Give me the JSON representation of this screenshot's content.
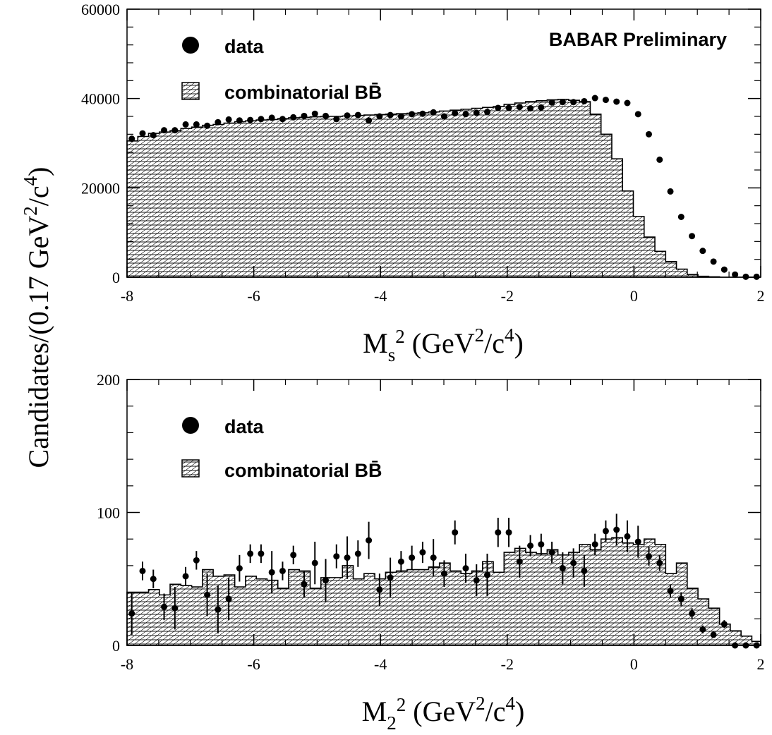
{
  "figure": {
    "header": "BABAR Preliminary",
    "ylabel": {
      "main": "Candidates/(0.17 GeV",
      "sup1": "2",
      "mid": "/c",
      "sup2": "4",
      "end": ")"
    }
  },
  "chart_data": [
    {
      "type": "bar",
      "title": "",
      "xlabel": {
        "base": "M",
        "sub": "s",
        "sup": "2",
        "rest": " (GeV",
        "sup2": "2",
        "mid": "/c",
        "sup3": "4",
        "end": ")"
      },
      "ylabel": "Candidates/(0.17 GeV2/c4)",
      "xlim": [
        -8,
        2
      ],
      "ylim": [
        0,
        60000
      ],
      "x_ticks": [
        -8,
        -6,
        -4,
        -2,
        0,
        2
      ],
      "y_ticks": [
        0,
        20000,
        40000,
        60000
      ],
      "x_tick_labels": [
        "-8",
        "-6",
        "-4",
        "-2",
        "0",
        "2"
      ],
      "y_tick_labels": [
        "0",
        "20000",
        "40000",
        "60000"
      ],
      "grid": false,
      "legend": {
        "position": "top-left",
        "entries": [
          {
            "label": "data",
            "marker": "filled-circle"
          },
          {
            "label": "combinatorial BB̄",
            "marker": "hatched-box"
          }
        ]
      },
      "bin_width": 0.17,
      "series": [
        {
          "name": "combinatorial BB̄",
          "kind": "hatched-histogram",
          "values": [
            30500,
            31500,
            32200,
            32500,
            32800,
            33300,
            33600,
            34000,
            34200,
            34500,
            34800,
            35000,
            35200,
            35300,
            35500,
            35700,
            35800,
            35900,
            36000,
            36000,
            36100,
            36200,
            36300,
            36400,
            36500,
            36600,
            36700,
            36800,
            37000,
            37200,
            37400,
            37600,
            37800,
            38000,
            38200,
            38700,
            39000,
            39300,
            39500,
            39700,
            39800,
            39600,
            39300,
            36500,
            32000,
            26500,
            19300,
            13600,
            9000,
            5800,
            3500,
            1800,
            600,
            200,
            100,
            0,
            0,
            0,
            0
          ]
        },
        {
          "name": "data",
          "kind": "points",
          "x": [
            -7.925,
            -7.755,
            -7.585,
            -7.415,
            -7.245,
            -7.075,
            -6.905,
            -6.735,
            -6.565,
            -6.395,
            -6.225,
            -6.055,
            -5.885,
            -5.715,
            -5.545,
            -5.375,
            -5.205,
            -5.035,
            -4.865,
            -4.695,
            -4.525,
            -4.355,
            -4.185,
            -4.015,
            -3.845,
            -3.675,
            -3.505,
            -3.335,
            -3.165,
            -2.995,
            -2.825,
            -2.655,
            -2.485,
            -2.315,
            -2.145,
            -1.975,
            -1.805,
            -1.635,
            -1.465,
            -1.295,
            -1.125,
            -0.955,
            -0.785,
            -0.615,
            -0.445,
            -0.275,
            -0.105,
            0.065,
            0.235,
            0.405,
            0.575,
            0.745,
            0.915,
            1.085,
            1.255,
            1.425,
            1.595,
            1.765,
            1.935
          ],
          "y": [
            31000,
            32200,
            31800,
            32900,
            32900,
            34200,
            34200,
            33900,
            34700,
            35300,
            35100,
            35200,
            35400,
            35700,
            35400,
            35800,
            36100,
            36600,
            36100,
            35400,
            36200,
            36300,
            35100,
            36000,
            36300,
            36000,
            36500,
            36600,
            36900,
            36000,
            36700,
            36500,
            36800,
            37000,
            37900,
            37900,
            38100,
            37800,
            38000,
            39100,
            39200,
            39200,
            39400,
            40100,
            39700,
            39300,
            39000,
            36500,
            32000,
            26300,
            19200,
            13500,
            9200,
            5900,
            3500,
            1700,
            600,
            100,
            100
          ],
          "yerr": []
        }
      ]
    },
    {
      "type": "bar",
      "title": "",
      "xlabel": {
        "base": "M",
        "sub": "2",
        "sup": "2",
        "rest": " (GeV",
        "sup2": "2",
        "mid": "/c",
        "sup3": "4",
        "end": ")"
      },
      "ylabel": "Candidates/(0.17 GeV2/c4)",
      "xlim": [
        -8,
        2
      ],
      "ylim": [
        0,
        200
      ],
      "x_ticks": [
        -8,
        -6,
        -4,
        -2,
        0,
        2
      ],
      "y_ticks": [
        0,
        100,
        200
      ],
      "x_tick_labels": [
        "-8",
        "-6",
        "-4",
        "-2",
        "0",
        "2"
      ],
      "y_tick_labels": [
        "0",
        "100",
        "200"
      ],
      "grid": false,
      "legend": {
        "position": "top-left",
        "entries": [
          {
            "label": "data",
            "marker": "filled-circle"
          },
          {
            "label": "combinatorial BB̄",
            "marker": "hatched-box"
          }
        ]
      },
      "bin_width": 0.17,
      "series": [
        {
          "name": "combinatorial BB̄",
          "kind": "hatched-histogram",
          "values": [
            40,
            40,
            42,
            38,
            46,
            45,
            44,
            57,
            52,
            53,
            44,
            52,
            50,
            49,
            43,
            57,
            56,
            43,
            51,
            51,
            60,
            50,
            54,
            50,
            55,
            56,
            57,
            57,
            59,
            62,
            56,
            54,
            56,
            63,
            55,
            70,
            73,
            70,
            69,
            72,
            68,
            70,
            76,
            72,
            80,
            81,
            77,
            76,
            80,
            76,
            54,
            62,
            43,
            35,
            28,
            16,
            11,
            7,
            3
          ],
          "values_tail": [
            0
          ]
        },
        {
          "name": "data",
          "kind": "points",
          "x": [
            -7.925,
            -7.755,
            -7.585,
            -7.415,
            -7.245,
            -7.075,
            -6.905,
            -6.735,
            -6.565,
            -6.395,
            -6.225,
            -6.055,
            -5.885,
            -5.715,
            -5.545,
            -5.375,
            -5.205,
            -5.035,
            -4.865,
            -4.695,
            -4.525,
            -4.355,
            -4.185,
            -4.015,
            -3.845,
            -3.675,
            -3.505,
            -3.335,
            -3.165,
            -2.995,
            -2.825,
            -2.655,
            -2.485,
            -2.315,
            -2.145,
            -1.975,
            -1.805,
            -1.635,
            -1.465,
            -1.295,
            -1.125,
            -0.955,
            -0.785,
            -0.615,
            -0.445,
            -0.275,
            -0.105,
            0.065,
            0.235,
            0.405,
            0.575,
            0.745,
            0.915,
            1.085,
            1.255,
            1.425,
            1.595,
            1.765,
            1.935
          ],
          "y": [
            24,
            56,
            50,
            29,
            28,
            52,
            64,
            38,
            27,
            35,
            58,
            69,
            69,
            55,
            56,
            68,
            46,
            62,
            49,
            67,
            66,
            69,
            79,
            42,
            51,
            63,
            66,
            70,
            66,
            54,
            85,
            58,
            49,
            53,
            85,
            85,
            63,
            75,
            76,
            70,
            58,
            62,
            56,
            76,
            86,
            87,
            82,
            78,
            67,
            62,
            41,
            35,
            24,
            12,
            8,
            16,
            0,
            0,
            0
          ],
          "yerr": [
            16,
            7,
            7,
            10,
            16,
            7,
            7,
            16,
            18,
            16,
            10,
            7,
            7,
            16,
            7,
            7,
            10,
            16,
            16,
            9,
            16,
            10,
            14,
            12,
            15,
            8,
            9,
            8,
            14,
            10,
            9,
            11,
            12,
            16,
            11,
            11,
            12,
            8,
            8,
            8,
            12,
            11,
            12,
            8,
            8,
            12,
            12,
            12,
            7,
            6,
            5,
            5,
            4,
            3,
            2,
            3,
            0,
            0,
            0
          ]
        }
      ]
    }
  ]
}
